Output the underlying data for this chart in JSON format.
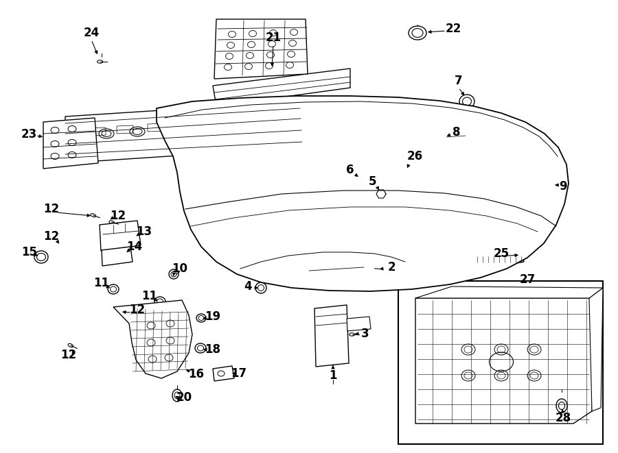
{
  "bg_color": "#ffffff",
  "line_color": "#000000",
  "lw": 1.0,
  "fs": 12,
  "fw": "bold"
}
